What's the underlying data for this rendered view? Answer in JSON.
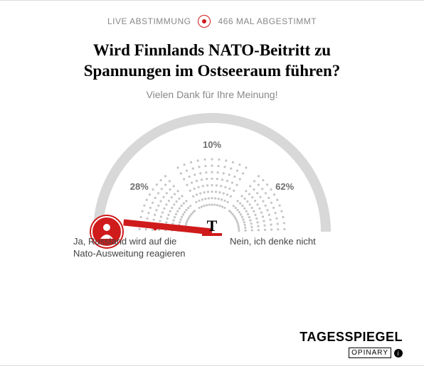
{
  "header": {
    "live_label": "LIVE ABSTIMMUNG",
    "count_label": "466 MAL ABGESTIMMT"
  },
  "question": "Wird Finnlands NATO-Beitritt zu Spannungen im Ostseeraum führen?",
  "thanks": "Vielen Dank für Ihre Meinung!",
  "gauge": {
    "segments": [
      {
        "pct": 28,
        "label": "28%"
      },
      {
        "pct": 10,
        "label": "10%"
      },
      {
        "pct": 62,
        "label": "62%"
      }
    ],
    "arc_color": "#d8d8d8",
    "dot_color": "#c5c5c5",
    "user_marker_color": "#cf1b1b",
    "needle_color": "#cf1b1b",
    "needle_angle_deg": 174,
    "center_logo": "T",
    "center_underline_color": "#cf1b1b",
    "pct_fontsize": 13,
    "pct_color": "#6e6e6e"
  },
  "options": {
    "left": "Ja, Russland wird auf die Nato-Ausweitung reagieren",
    "right": "Nein, ich denke nicht"
  },
  "footer": {
    "brand": "TAGESSPIEGEL",
    "provider": "OPINARY"
  }
}
